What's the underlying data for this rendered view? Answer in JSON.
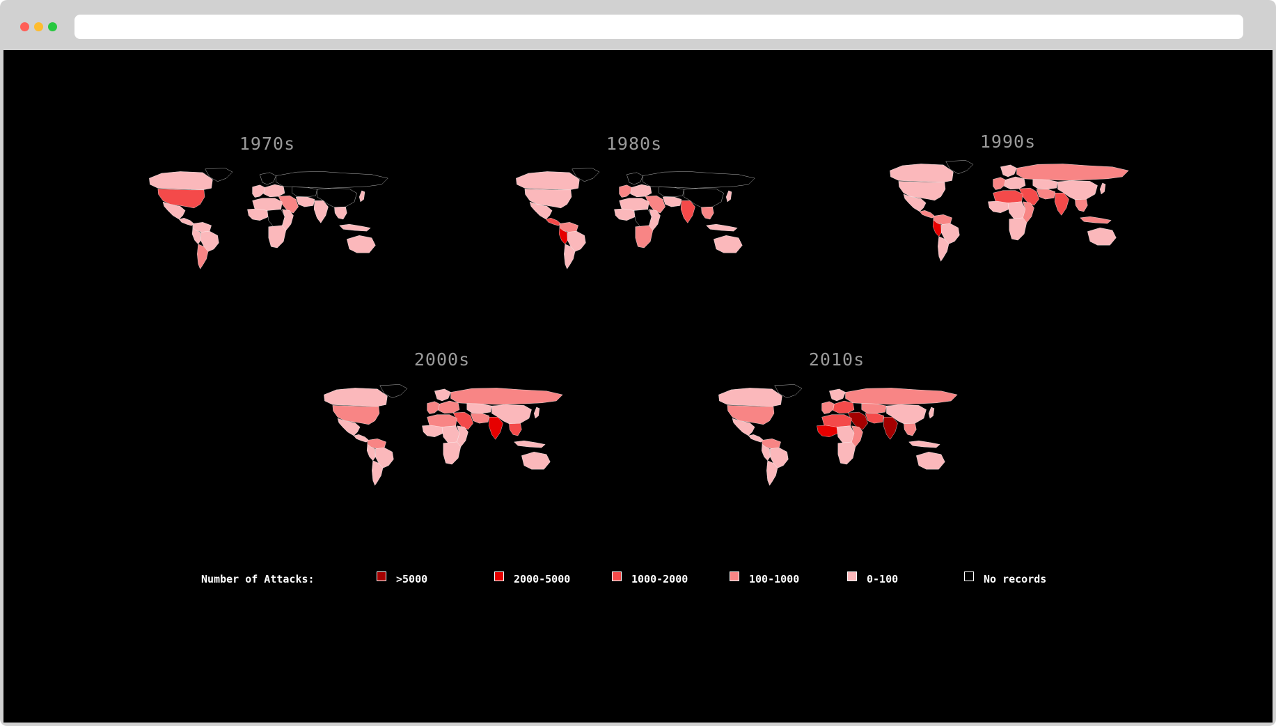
{
  "browser": {
    "address_value": "",
    "controls": [
      "close",
      "minimize",
      "maximize"
    ]
  },
  "maps": [
    {
      "title": "1970s",
      "levels": {
        "NA": 3,
        "CA": 1,
        "GL": 0,
        "MX": 1,
        "CAM": 1,
        "SA_N": 1,
        "SA_W": 1,
        "BR": 1,
        "SA_S": 2,
        "EU_W": 1,
        "EU_N": 0,
        "EU_E": 1,
        "RU": 0,
        "AF_N": 1,
        "AF_W": 1,
        "AF_C": 0,
        "AF_E": 1,
        "AF_S": 1,
        "ME": 2,
        "IR": 1,
        "CA_ASIA": 0,
        "IN": 1,
        "CN": 0,
        "SEA": 1,
        "ID": 1,
        "JP": 1,
        "AU": 1
      }
    },
    {
      "title": "1980s",
      "levels": {
        "NA": 1,
        "CA": 1,
        "GL": 0,
        "MX": 1,
        "CAM": 3,
        "SA_N": 2,
        "SA_W": 4,
        "BR": 1,
        "SA_S": 1,
        "EU_W": 2,
        "EU_N": 0,
        "EU_E": 1,
        "RU": 0,
        "AF_N": 1,
        "AF_W": 1,
        "AF_C": 0,
        "AF_E": 1,
        "AF_S": 2,
        "ME": 2,
        "IR": 1,
        "CA_ASIA": 0,
        "IN": 3,
        "CN": 0,
        "SEA": 2,
        "ID": 1,
        "JP": 1,
        "AU": 1
      }
    },
    {
      "title": "1990s",
      "levels": {
        "NA": 1,
        "CA": 1,
        "GL": 0,
        "MX": 1,
        "CAM": 2,
        "SA_N": 2,
        "SA_W": 4,
        "BR": 1,
        "SA_S": 1,
        "EU_W": 2,
        "EU_N": 1,
        "EU_E": 1,
        "RU": 2,
        "AF_N": 3,
        "AF_W": 1,
        "AF_C": 1,
        "AF_E": 2,
        "AF_S": 1,
        "ME": 3,
        "IR": 2,
        "CA_ASIA": 1,
        "IN": 3,
        "CN": 1,
        "SEA": 2,
        "ID": 2,
        "JP": 1,
        "AU": 1
      }
    },
    {
      "title": "2000s",
      "levels": {
        "NA": 2,
        "CA": 1,
        "GL": 0,
        "MX": 1,
        "CAM": 1,
        "SA_N": 2,
        "SA_W": 1,
        "BR": 1,
        "SA_S": 1,
        "EU_W": 2,
        "EU_N": 1,
        "EU_E": 2,
        "RU": 2,
        "AF_N": 2,
        "AF_W": 1,
        "AF_C": 1,
        "AF_E": 1,
        "AF_S": 1,
        "ME": 3,
        "IR": 2,
        "CA_ASIA": 1,
        "IN": 4,
        "CN": 1,
        "SEA": 3,
        "ID": 1,
        "JP": 1,
        "AU": 1
      }
    },
    {
      "title": "2010s",
      "levels": {
        "NA": 2,
        "CA": 1,
        "GL": 0,
        "MX": 1,
        "CAM": 1,
        "SA_N": 2,
        "SA_W": 1,
        "BR": 1,
        "SA_S": 1,
        "EU_W": 2,
        "EU_N": 1,
        "EU_E": 3,
        "RU": 2,
        "AF_N": 3,
        "AF_W": 4,
        "AF_C": 1,
        "AF_E": 2,
        "AF_S": 1,
        "ME": 5,
        "IR": 3,
        "CA_ASIA": 2,
        "IN": 5,
        "CN": 1,
        "SEA": 2,
        "ID": 1,
        "JP": 1,
        "AU": 1
      }
    }
  ],
  "legend": {
    "title": "Number of Attacks:",
    "items": [
      {
        "label": ">5000",
        "color": "#a30000"
      },
      {
        "label": "2000-5000",
        "color": "#e60000"
      },
      {
        "label": "1000-2000",
        "color": "#f44a4a"
      },
      {
        "label": "100-1000",
        "color": "#f88585"
      },
      {
        "label": "0-100",
        "color": "#fbb8bb"
      },
      {
        "label": "No records",
        "color": "#000000"
      }
    ]
  }
}
